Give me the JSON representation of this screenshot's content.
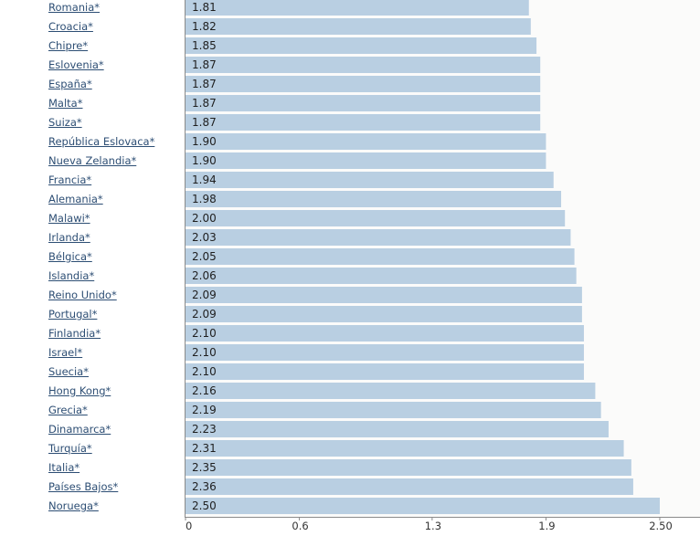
{
  "chart_data": {
    "type": "bar",
    "orientation": "horizontal",
    "categories": [
      "Romania*",
      "Croacia*",
      "Chipre*",
      "Eslovenia*",
      "España*",
      "Malta*",
      "Suiza*",
      "República Eslovaca*",
      "Nueva Zelandia*",
      "Francia*",
      "Alemania*",
      "Malawi*",
      "Irlanda*",
      "Bélgica*",
      "Islandia*",
      "Reino Unido*",
      "Portugal*",
      "Finlandia*",
      "Israel*",
      "Suecia*",
      "Hong Kong*",
      "Grecia*",
      "Dinamarca*",
      "Turquía*",
      "Italia*",
      "Países Bajos*",
      "Noruega*"
    ],
    "values": [
      1.81,
      1.82,
      1.85,
      1.87,
      1.87,
      1.87,
      1.87,
      1.9,
      1.9,
      1.94,
      1.98,
      2.0,
      2.03,
      2.05,
      2.06,
      2.09,
      2.09,
      2.1,
      2.1,
      2.1,
      2.16,
      2.19,
      2.23,
      2.31,
      2.35,
      2.36,
      2.5
    ],
    "value_labels": [
      "1.81",
      "1.82",
      "1.85",
      "1.87",
      "1.87",
      "1.87",
      "1.87",
      "1.90",
      "1.90",
      "1.94",
      "1.98",
      "2.00",
      "2.03",
      "2.05",
      "2.06",
      "2.09",
      "2.09",
      "2.10",
      "2.10",
      "2.10",
      "2.16",
      "2.19",
      "2.23",
      "2.31",
      "2.35",
      "2.36",
      "2.50"
    ],
    "x_ticks": [
      0,
      0.6,
      1.3,
      1.9,
      2.5
    ],
    "x_tick_labels": [
      "0",
      "0.6",
      "1.3",
      "1.9",
      "2.50"
    ],
    "xlim": [
      0,
      2.5
    ],
    "title": "",
    "xlabel": "",
    "ylabel": "",
    "grid": false,
    "legend": "none",
    "colors": {
      "bar": "#b9cfe2",
      "label_link": "#2d4e74",
      "axis": "#8a8a8a"
    }
  }
}
